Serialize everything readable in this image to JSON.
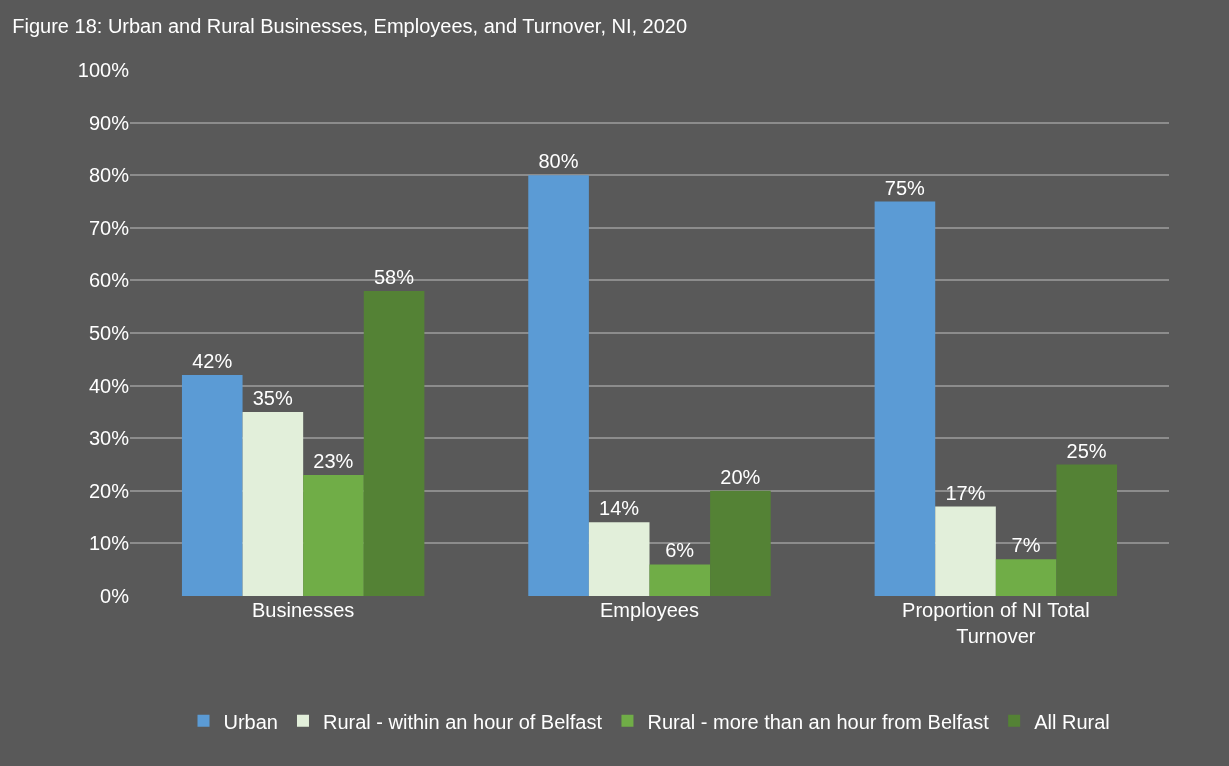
{
  "chart_data": {
    "type": "bar",
    "title": "Figure 18: Urban and Rural Businesses, Employees, and Turnover, NI, 2020",
    "categories": [
      "Businesses",
      "Employees",
      "Proportion of NI Total Turnover"
    ],
    "series": [
      {
        "name": "Urban",
        "color": "#5b9bd5",
        "values": [
          42,
          80,
          75
        ],
        "value_labels": [
          "42%",
          "80%",
          "75%"
        ]
      },
      {
        "name": "Rural - within an hour of Belfast",
        "color": "#e2efda",
        "values": [
          35,
          14,
          17
        ],
        "value_labels": [
          "35%",
          "14%",
          "17%"
        ]
      },
      {
        "name": "Rural - more than an hour from Belfast",
        "color": "#70ad47",
        "values": [
          23,
          6,
          7
        ],
        "value_labels": [
          "23%",
          "6%",
          "7%"
        ]
      },
      {
        "name": "All Rural",
        "color": "#548235",
        "values": [
          58,
          20,
          25
        ],
        "value_labels": [
          "58%",
          "20%",
          "25%"
        ]
      }
    ],
    "ylim": [
      0,
      100
    ],
    "yticks": [
      {
        "value": 0,
        "label": "0%"
      },
      {
        "value": 10,
        "label": "10%"
      },
      {
        "value": 20,
        "label": "20%"
      },
      {
        "value": 30,
        "label": "30%"
      },
      {
        "value": 40,
        "label": "40%"
      },
      {
        "value": 50,
        "label": "50%"
      },
      {
        "value": 60,
        "label": "60%"
      },
      {
        "value": 70,
        "label": "70%"
      },
      {
        "value": 80,
        "label": "80%"
      },
      {
        "value": 90,
        "label": "90%"
      },
      {
        "value": 100,
        "label": "100%"
      }
    ],
    "grid": "y",
    "legend": "bottom"
  }
}
